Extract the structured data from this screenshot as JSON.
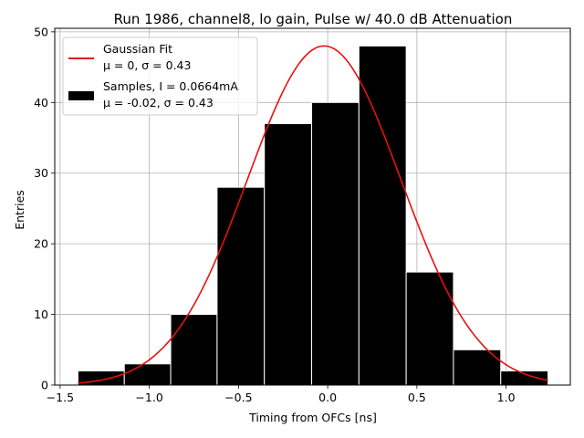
{
  "chart_data": {
    "type": "histogram",
    "title": "Run 1986, channel8, lo gain, Pulse w/ 40.0 dB Attenuation",
    "xlabel": "Timing from OFCs [ns]",
    "ylabel": "Entries",
    "xlim": [
      -1.53,
      1.36
    ],
    "ylim": [
      0,
      50.5
    ],
    "xticks": [
      -1.5,
      -1.0,
      -0.5,
      0.0,
      0.5,
      1.0
    ],
    "xtick_labels": [
      "−1.5",
      "−1.0",
      "−0.5",
      "0.0",
      "0.5",
      "1.0"
    ],
    "yticks": [
      0,
      10,
      20,
      30,
      40,
      50
    ],
    "ytick_labels": [
      "0",
      "10",
      "20",
      "30",
      "40",
      "50"
    ],
    "grid": true,
    "bins": [
      {
        "start": -1.4,
        "end": -1.14,
        "count": 2
      },
      {
        "start": -1.14,
        "end": -0.88,
        "count": 3
      },
      {
        "start": -0.88,
        "end": -0.62,
        "count": 10
      },
      {
        "start": -0.62,
        "end": -0.355,
        "count": 28
      },
      {
        "start": -0.355,
        "end": -0.09,
        "count": 37
      },
      {
        "start": -0.09,
        "end": 0.175,
        "count": 40
      },
      {
        "start": 0.175,
        "end": 0.44,
        "count": 48
      },
      {
        "start": 0.44,
        "end": 0.705,
        "count": 16
      },
      {
        "start": 0.705,
        "end": 0.97,
        "count": 5
      },
      {
        "start": 0.97,
        "end": 1.235,
        "count": 2
      }
    ],
    "fit": {
      "name": "Gaussian Fit",
      "color": "#e8110f",
      "mean": -0.02,
      "sigma": 0.43,
      "amplitude": 48,
      "x_range": [
        -1.4,
        1.235
      ]
    },
    "bar_color": "#000000",
    "bar_edge": "#ffffff",
    "legend": {
      "placement": "top-left",
      "fit_line1": "Gaussian Fit",
      "fit_line2": "μ = 0, σ = 0.43",
      "samples_line1": "Samples, I = 0.0664mA",
      "samples_line2": "μ = -0.02, σ = 0.43"
    }
  }
}
